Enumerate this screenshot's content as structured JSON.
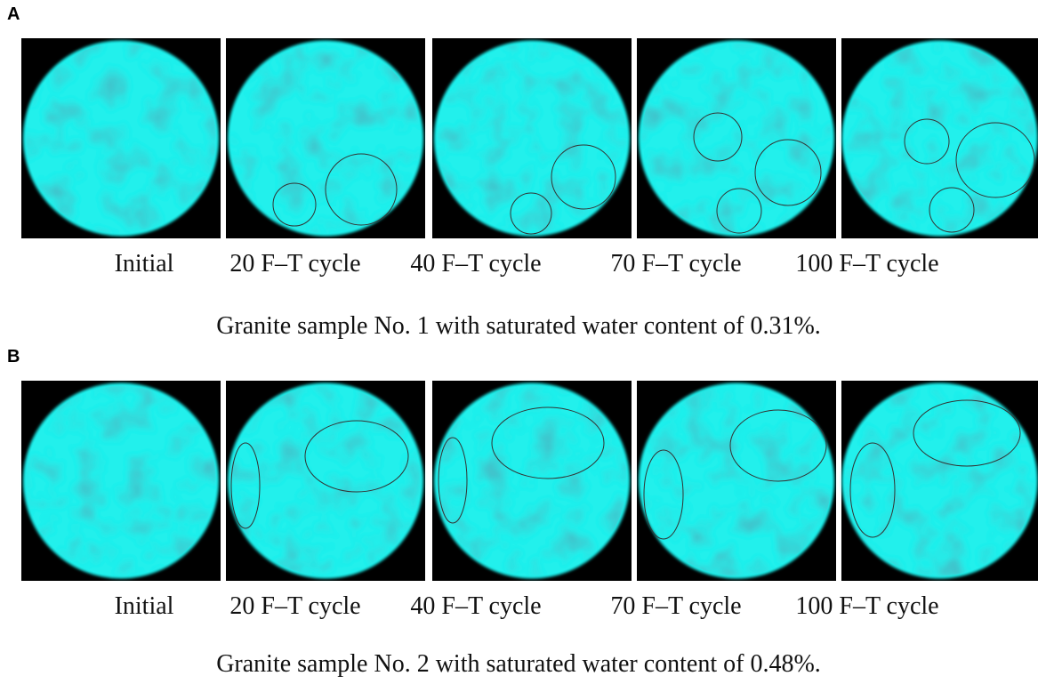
{
  "panels": [
    {
      "label": "A",
      "images": [
        {
          "caption": "Initial"
        },
        {
          "caption": "20 F–T cycle"
        },
        {
          "caption": "40 F–T cycle"
        },
        {
          "caption": "70 F–T cycle"
        },
        {
          "caption": "100 F–T cycle"
        }
      ],
      "caption": "Granite sample No. 1 with saturated water content of 0.31%."
    },
    {
      "label": "B",
      "images": [
        {
          "caption": "Initial"
        },
        {
          "caption": "20 F–T cycle"
        },
        {
          "caption": "40 F–T cycle"
        },
        {
          "caption": "70 F–T cycle"
        },
        {
          "caption": "100 F–T cycle"
        }
      ],
      "caption": "Granite sample No. 2 with saturated water content of 0.48%."
    }
  ]
}
